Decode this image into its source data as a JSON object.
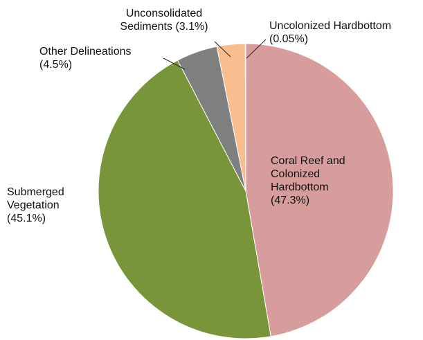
{
  "chart_data": {
    "type": "pie",
    "start_angle_deg": 0,
    "direction": "clockwise",
    "slices": [
      {
        "id": "coral",
        "label_lines": [
          "Coral Reef and",
          "Colonized",
          "Hardbottom",
          "(47.3%)"
        ],
        "value": 47.3,
        "color": "#d79d9d"
      },
      {
        "id": "submerged",
        "label_lines": [
          "Submerged",
          "Vegetation",
          "(45.1%)"
        ],
        "value": 45.1,
        "color": "#78953a"
      },
      {
        "id": "other",
        "label_lines": [
          "Other Delineations",
          "(4.5%)"
        ],
        "value": 4.5,
        "color": "#7f7f7f"
      },
      {
        "id": "sediments",
        "label_lines": [
          "Unconsolidated",
          "Sediments (3.1%)"
        ],
        "value": 3.1,
        "color": "#f9be8f"
      },
      {
        "id": "hardbottom",
        "label_lines": [
          "Uncolonized Hardbottom",
          "(0.05%)"
        ],
        "value": 0.05,
        "color": "#4f81bd"
      }
    ]
  }
}
